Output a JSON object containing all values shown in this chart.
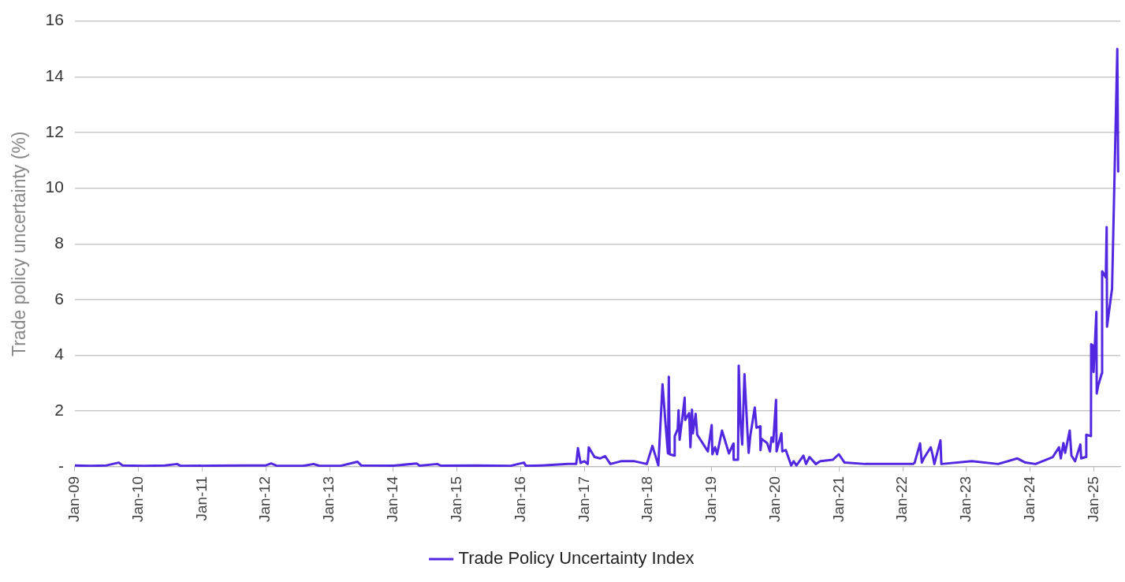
{
  "chart_data": {
    "type": "line",
    "ylabel": "Trade policy uncertainty (%)",
    "legend": "bottom",
    "grid": "y",
    "marker": "none",
    "line_style": "solid",
    "xlim": [
      "2009-01",
      "2025-06"
    ],
    "ylim": [
      0,
      16
    ],
    "yticks": [
      {
        "value": 0,
        "label": "-"
      },
      2,
      4,
      6,
      8,
      10,
      12,
      14,
      16
    ],
    "xticks": [
      {
        "value": "2009-01",
        "label": "Jan-09"
      },
      {
        "value": "2010-01",
        "label": "Jan-10"
      },
      {
        "value": "2011-01",
        "label": "Jan-11"
      },
      {
        "value": "2012-01",
        "label": "Jan-12"
      },
      {
        "value": "2013-01",
        "label": "Jan-13"
      },
      {
        "value": "2014-01",
        "label": "Jan-14"
      },
      {
        "value": "2015-01",
        "label": "Jan-15"
      },
      {
        "value": "2016-01",
        "label": "Jan-16"
      },
      {
        "value": "2017-01",
        "label": "Jan-17"
      },
      {
        "value": "2018-01",
        "label": "Jan-18"
      },
      {
        "value": "2019-01",
        "label": "Jan-19"
      },
      {
        "value": "2020-01",
        "label": "Jan-20"
      },
      {
        "value": "2021-01",
        "label": "Jan-21"
      },
      {
        "value": "2022-01",
        "label": "Jan-22"
      },
      {
        "value": "2023-01",
        "label": "Jan-23"
      },
      {
        "value": "2024-01",
        "label": "Jan-24"
      },
      {
        "value": "2025-01",
        "label": "Jan-25"
      }
    ],
    "series": [
      {
        "name": "Trade Policy Uncertainty Index",
        "color": "#5128e0",
        "x": [
          "2009-01-01",
          "2009-04-01",
          "2009-07-01",
          "2009-09-10",
          "2009-10-01",
          "2010-02-01",
          "2010-06-01",
          "2010-08-10",
          "2010-09-01",
          "2011-03-01",
          "2011-09-01",
          "2012-01-01",
          "2012-02-01",
          "2012-03-01",
          "2012-08-01",
          "2012-10-01",
          "2012-11-01",
          "2013-03-01",
          "2013-06-10",
          "2013-07-01",
          "2014-01-01",
          "2014-05-15",
          "2014-06-01",
          "2014-09-10",
          "2014-10-01",
          "2015-05-01",
          "2015-11-01",
          "2016-01-20",
          "2016-02-01",
          "2016-05-01",
          "2016-10-01",
          "2016-11-15",
          "2016-11-25",
          "2016-12-10",
          "2017-01-01",
          "2017-01-20",
          "2017-01-26",
          "2017-02-28",
          "2017-04-01",
          "2017-04-30",
          "2017-05-30",
          "2017-07-30",
          "2017-10-15",
          "2017-12-25",
          "2018-01-26",
          "2018-03-01",
          "2018-03-25",
          "2018-04-10",
          "2018-04-25",
          "2018-04-30",
          "2018-05-05",
          "2018-06-01",
          "2018-06-03",
          "2018-06-20",
          "2018-06-25",
          "2018-07-01",
          "2018-07-20",
          "2018-07-30",
          "2018-08-02",
          "2018-08-25",
          "2018-09-01",
          "2018-09-10",
          "2018-09-15",
          "2018-10-01",
          "2018-10-10",
          "2018-11-20",
          "2018-12-10",
          "2019-01-01",
          "2019-01-05",
          "2019-01-20",
          "2019-02-01",
          "2019-03-01",
          "2019-04-10",
          "2019-05-05",
          "2019-05-07",
          "2019-06-01",
          "2019-06-05",
          "2019-06-15",
          "2019-06-25",
          "2019-07-08",
          "2019-07-25",
          "2019-08-01",
          "2019-08-10",
          "2019-09-05",
          "2019-09-15",
          "2019-10-05",
          "2019-10-08",
          "2019-10-15",
          "2019-11-15",
          "2019-12-01",
          "2019-12-10",
          "2019-12-20",
          "2020-01-05",
          "2020-01-08",
          "2020-02-05",
          "2020-02-10",
          "2020-03-01",
          "2020-04-01",
          "2020-04-15",
          "2020-05-01",
          "2020-06-10",
          "2020-06-25",
          "2020-07-15",
          "2020-08-20",
          "2020-09-15",
          "2020-11-25",
          "2020-12-30",
          "2021-02-01",
          "2021-05-30",
          "2021-10-30",
          "2022-03-01",
          "2022-03-10",
          "2022-04-10",
          "2022-04-20",
          "2022-05-01",
          "2022-06-10",
          "2022-06-20",
          "2022-07-01",
          "2022-08-05",
          "2022-08-10",
          "2023-02-01",
          "2023-07-01",
          "2023-10-20",
          "2023-12-05",
          "2024-02-01",
          "2024-05-10",
          "2024-06-15",
          "2024-06-25",
          "2024-07-10",
          "2024-07-20",
          "2024-08-15",
          "2024-08-25",
          "2024-09-15",
          "2024-10-15",
          "2024-10-20",
          "2024-11-15",
          "2024-11-18",
          "2024-12-15",
          "2024-12-16",
          "2024-12-25",
          "2024-12-30",
          "2025-01-15",
          "2025-01-17",
          "2025-01-25",
          "2025-02-15",
          "2025-02-17",
          "2025-03-10",
          "2025-03-15",
          "2025-03-17",
          "2025-04-15",
          "2025-05-15",
          "2025-05-20"
        ],
        "values": [
          0.05,
          0.03,
          0.05,
          0.15,
          0.05,
          0.03,
          0.05,
          0.1,
          0.03,
          0.04,
          0.05,
          0.05,
          0.12,
          0.04,
          0.03,
          0.1,
          0.04,
          0.03,
          0.18,
          0.05,
          0.04,
          0.12,
          0.04,
          0.1,
          0.04,
          0.05,
          0.03,
          0.15,
          0.03,
          0.05,
          0.1,
          0.1,
          0.67,
          0.14,
          0.2,
          0.1,
          0.7,
          0.35,
          0.3,
          0.38,
          0.1,
          0.2,
          0.2,
          0.1,
          0.75,
          0.05,
          2.96,
          1.65,
          0.48,
          3.23,
          0.45,
          0.4,
          1.1,
          1.35,
          2.03,
          0.97,
          1.93,
          2.48,
          1.68,
          1.93,
          0.7,
          2.05,
          1.2,
          1.9,
          1.15,
          0.75,
          0.55,
          1.5,
          0.45,
          0.7,
          0.45,
          1.3,
          0.48,
          0.83,
          0.25,
          0.25,
          3.63,
          1.7,
          0.8,
          3.32,
          1.25,
          0.5,
          1.1,
          2.13,
          1.4,
          1.45,
          0.6,
          1.0,
          0.85,
          0.55,
          1.05,
          0.9,
          2.4,
          0.55,
          1.2,
          0.55,
          0.6,
          0.05,
          0.2,
          0.05,
          0.4,
          0.1,
          0.35,
          0.1,
          0.2,
          0.25,
          0.45,
          0.15,
          0.1,
          0.1,
          0.1,
          0.15,
          0.84,
          0.15,
          0.3,
          0.7,
          0.45,
          0.1,
          0.95,
          0.1,
          0.2,
          0.1,
          0.3,
          0.15,
          0.1,
          0.35,
          0.7,
          0.3,
          0.85,
          0.5,
          1.3,
          0.4,
          0.2,
          0.8,
          0.3,
          0.35,
          1.15,
          1.1,
          4.4,
          4.35,
          3.4,
          5.56,
          2.63,
          2.9,
          3.35,
          7.02,
          6.8,
          8.6,
          5.03,
          6.4,
          15.0,
          10.6
        ]
      }
    ]
  }
}
